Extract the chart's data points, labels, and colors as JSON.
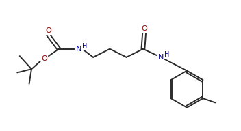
{
  "bg_color": "#ffffff",
  "line_color": "#2a2a2a",
  "o_color": "#8B0000",
  "n_color": "#00008B",
  "bond_lw": 1.4,
  "font_size": 7.5,
  "xlim": [
    0,
    9.5
  ],
  "ylim": [
    0,
    5.5
  ],
  "figw": 3.52,
  "figh": 1.92,
  "dpi": 100
}
